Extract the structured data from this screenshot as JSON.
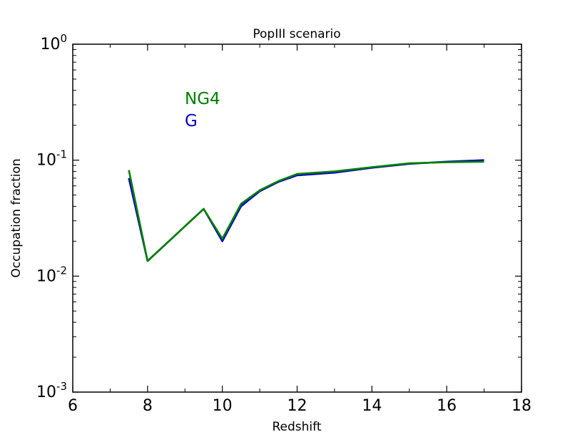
{
  "chart_data": {
    "type": "line",
    "title": "PopIII scenario",
    "xlabel": "Redshift",
    "ylabel": "Occupation fraction",
    "xlim": [
      6,
      18
    ],
    "ylim": [
      0.001,
      1
    ],
    "yscale": "log",
    "xticks": [
      6,
      8,
      10,
      12,
      14,
      16,
      18
    ],
    "yticks": [
      {
        "value": 1,
        "base": "10",
        "exp": "0"
      },
      {
        "value": 0.1,
        "base": "10",
        "exp": "-1"
      },
      {
        "value": 0.01,
        "base": "10",
        "exp": "-2"
      },
      {
        "value": 0.001,
        "base": "10",
        "exp": "-3"
      }
    ],
    "grid": false,
    "legend_position": "upper-left",
    "series": [
      {
        "name": "NG4",
        "color": "#008000",
        "points": [
          [
            7.5,
            0.082
          ],
          [
            8,
            0.0135
          ],
          [
            9.5,
            0.038
          ],
          [
            10,
            0.021
          ],
          [
            10.5,
            0.042
          ],
          [
            11,
            0.055
          ],
          [
            11.5,
            0.066
          ],
          [
            12,
            0.076
          ],
          [
            13,
            0.08
          ],
          [
            14,
            0.087
          ],
          [
            15,
            0.094
          ],
          [
            16,
            0.096
          ],
          [
            17,
            0.097
          ]
        ]
      },
      {
        "name": "G",
        "color": "#0000cc",
        "points": [
          [
            7.5,
            0.07
          ],
          [
            8,
            0.0135
          ],
          [
            9.5,
            0.038
          ],
          [
            10,
            0.02
          ],
          [
            10.5,
            0.04
          ],
          [
            11,
            0.054
          ],
          [
            11.5,
            0.065
          ],
          [
            12,
            0.074
          ],
          [
            13,
            0.078
          ],
          [
            14,
            0.086
          ],
          [
            15,
            0.093
          ],
          [
            16,
            0.097
          ],
          [
            17,
            0.1
          ]
        ]
      }
    ]
  }
}
